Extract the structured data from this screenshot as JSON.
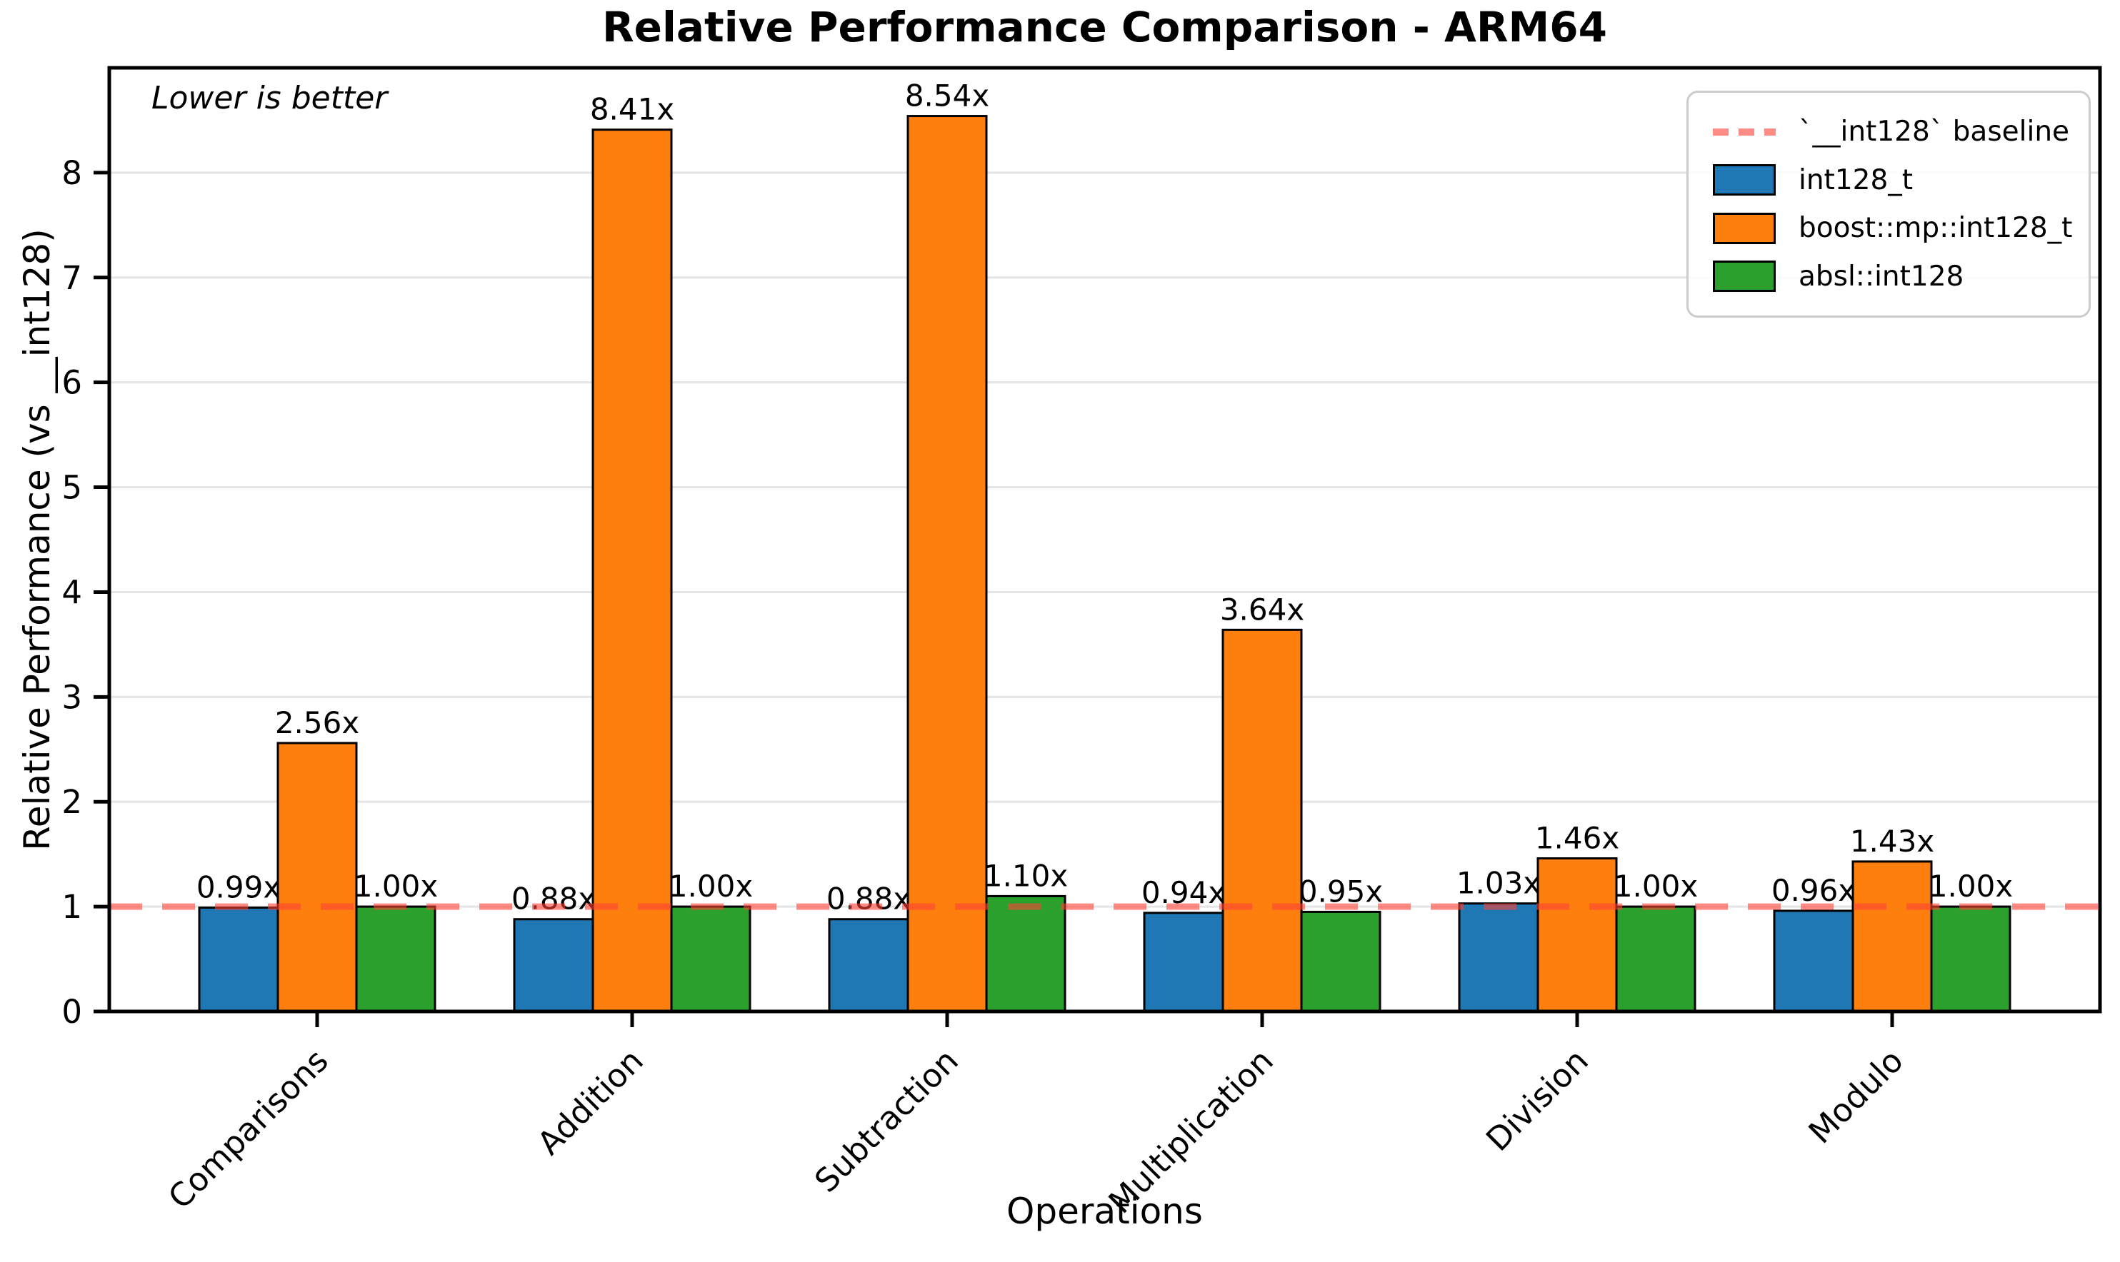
{
  "title": "Relative Performance Comparison - ARM64",
  "chart_data": {
    "type": "bar",
    "title": "Relative Performance Comparison - ARM64",
    "xlabel": "Operations",
    "ylabel": "Relative Performance (vs __int128)",
    "annotation": "Lower is better",
    "categories": [
      "Comparisons",
      "Addition",
      "Subtraction",
      "Multiplication",
      "Division",
      "Modulo"
    ],
    "series": [
      {
        "name": "int128_t",
        "color": "#1f77b4",
        "values": [
          0.99,
          0.88,
          0.88,
          0.94,
          1.03,
          0.96
        ],
        "labels": [
          "0.99x",
          "0.88x",
          "0.88x",
          "0.94x",
          "1.03x",
          "0.96x"
        ]
      },
      {
        "name": "boost::mp::int128_t",
        "color": "#ff7f0e",
        "values": [
          2.56,
          8.41,
          8.54,
          3.64,
          1.46,
          1.43
        ],
        "labels": [
          "2.56x",
          "8.41x",
          "8.54x",
          "3.64x",
          "1.46x",
          "1.43x"
        ]
      },
      {
        "name": "absl::int128",
        "color": "#2ca02c",
        "values": [
          1.0,
          1.0,
          1.1,
          0.95,
          1.0,
          1.0
        ],
        "labels": [
          "1.00x",
          "1.00x",
          "1.10x",
          "0.95x",
          "1.00x",
          "1.00x"
        ]
      }
    ],
    "baseline": {
      "value": 1.0,
      "label": "`__int128` baseline",
      "color": "#ff4136",
      "opacity": 0.6
    },
    "yticks": [
      "0",
      "1",
      "2",
      "3",
      "4",
      "5",
      "6",
      "7",
      "8"
    ],
    "ylim": [
      0,
      9.0
    ],
    "grid": true,
    "grid_color": "#e5e5e5",
    "legend_position": "upper right",
    "bar_edge_color": "#000000"
  }
}
